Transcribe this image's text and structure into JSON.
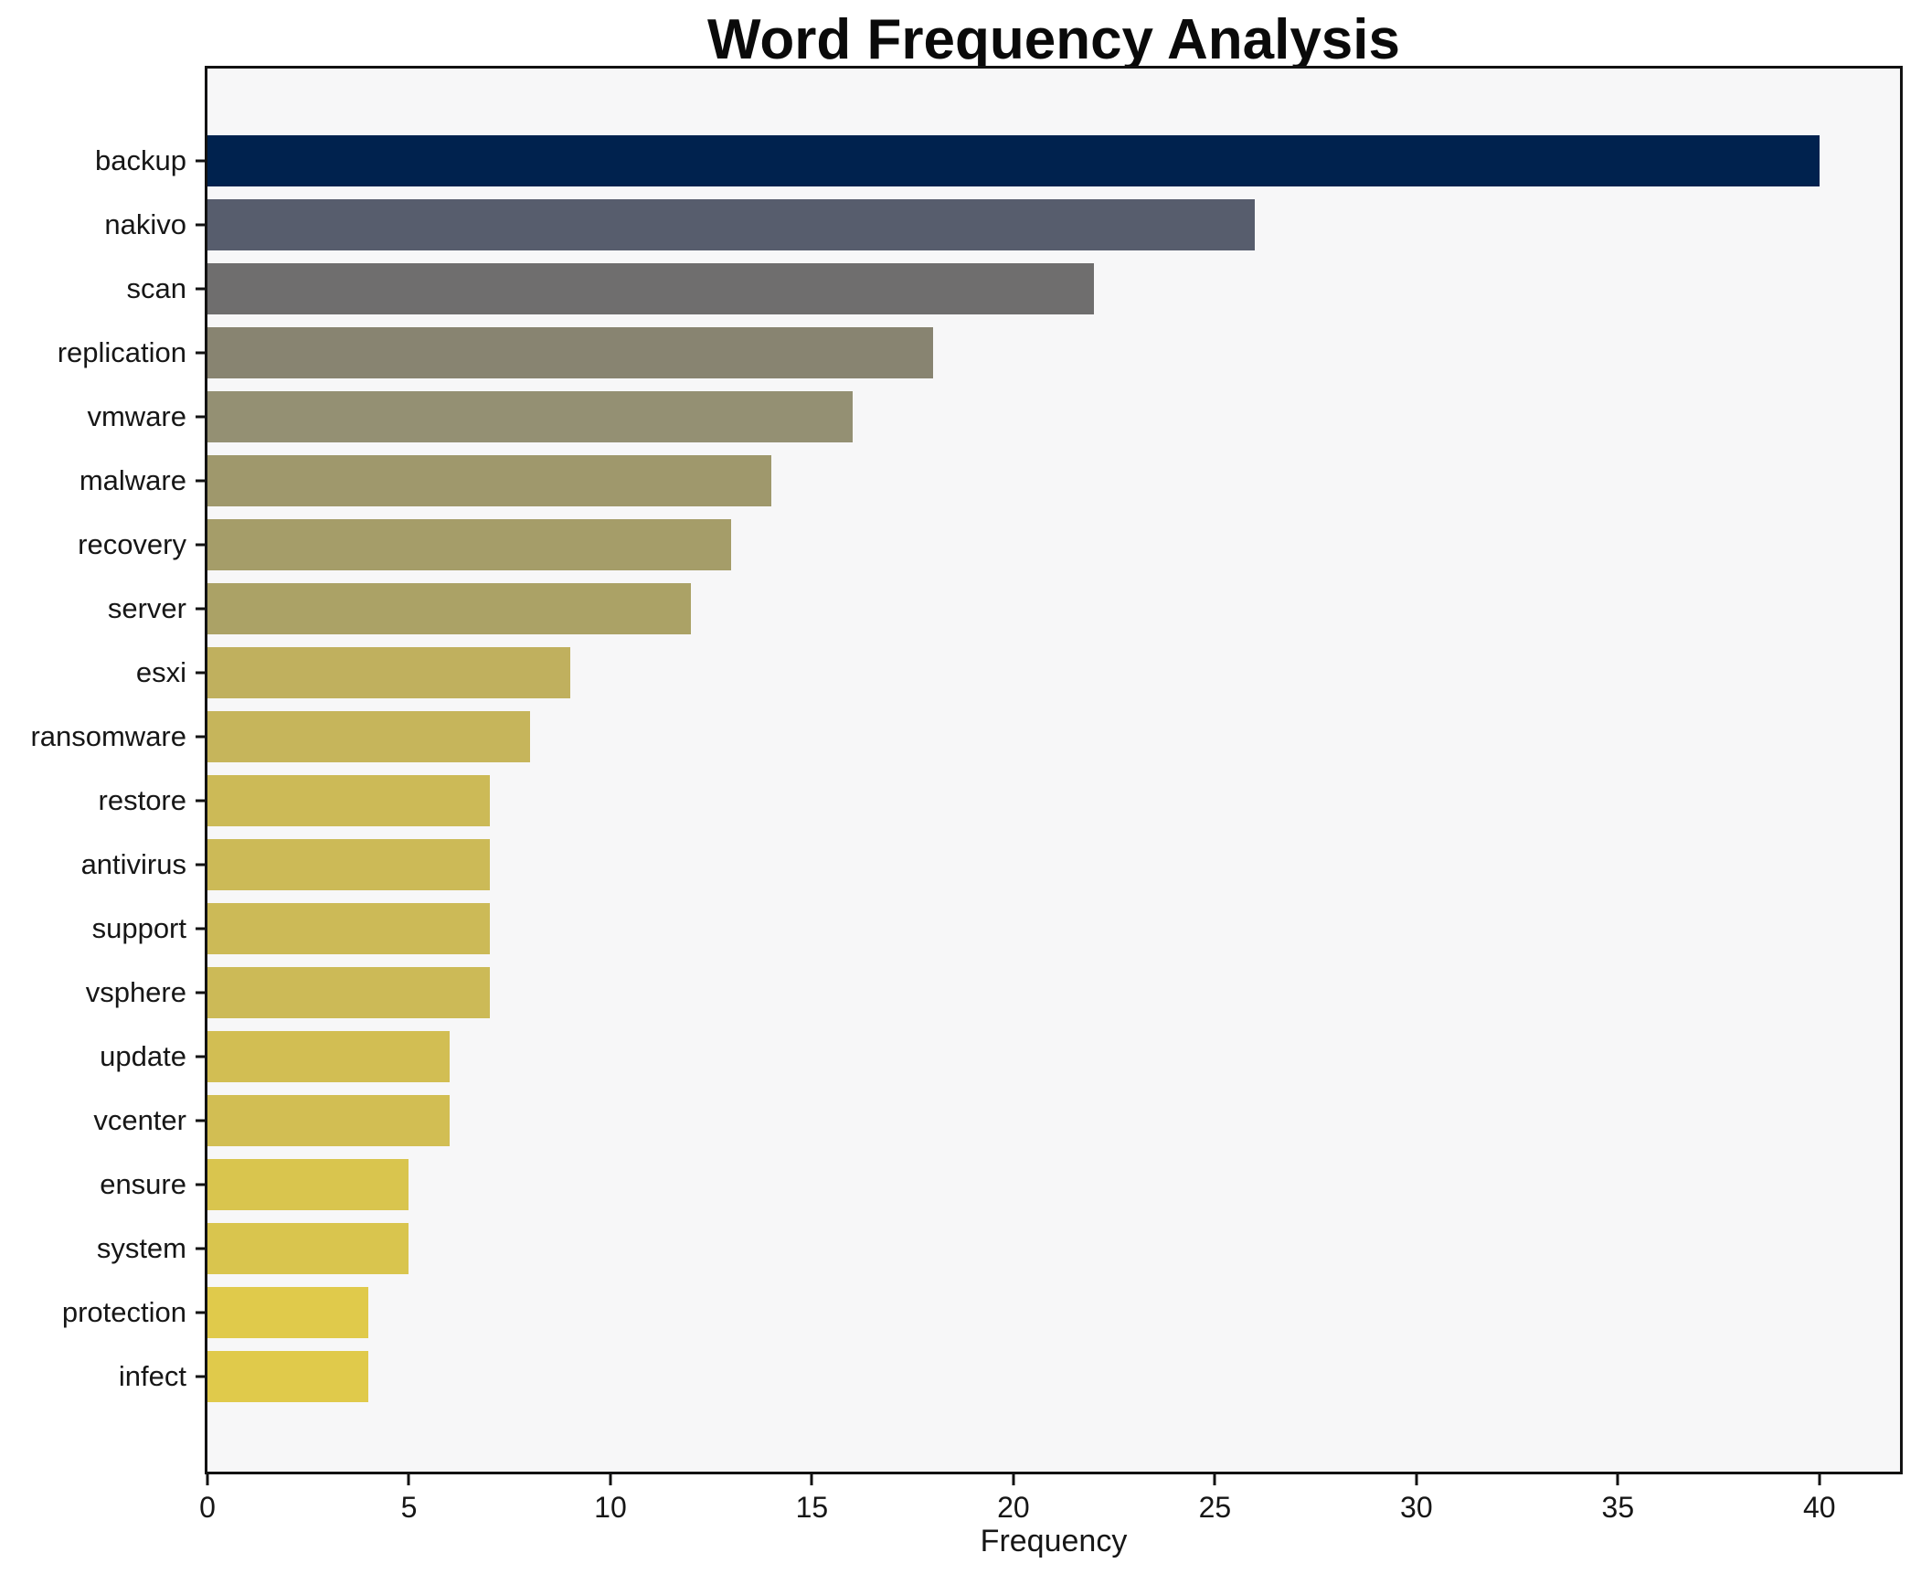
{
  "title": "Word Frequency Analysis",
  "chart_data": {
    "type": "bar",
    "orientation": "horizontal",
    "title": "Word Frequency Analysis",
    "xlabel": "Frequency",
    "ylabel": "",
    "categories": [
      "backup",
      "nakivo",
      "scan",
      "replication",
      "vmware",
      "malware",
      "recovery",
      "server",
      "esxi",
      "ransomware",
      "restore",
      "antivirus",
      "support",
      "vsphere",
      "update",
      "vcenter",
      "ensure",
      "system",
      "protection",
      "infect"
    ],
    "values": [
      40,
      26,
      22,
      18,
      16,
      14,
      13,
      12,
      9,
      8,
      7,
      7,
      7,
      7,
      6,
      6,
      5,
      5,
      4,
      4
    ],
    "bar_colors": [
      "#00224E",
      "#575D6D",
      "#6F6E6E",
      "#888471",
      "#949073",
      "#9F986C",
      "#A59D69",
      "#ABA266",
      "#C0B05E",
      "#C6B55B",
      "#CCBA57",
      "#CCBA57",
      "#CCBA57",
      "#CCBA57",
      "#D2BE53",
      "#D2BE53",
      "#D9C54E",
      "#D9C54E",
      "#E0CA4B",
      "#E0CA4B"
    ],
    "xticks": [
      0,
      5,
      10,
      15,
      20,
      25,
      30,
      35,
      40
    ],
    "xlim": [
      0,
      42
    ],
    "grid": false,
    "legend": null,
    "colormap": "cividis",
    "plot_background": "#F7F7F8",
    "figure_background": "#FFFFFF",
    "spine_color": "#121212"
  }
}
